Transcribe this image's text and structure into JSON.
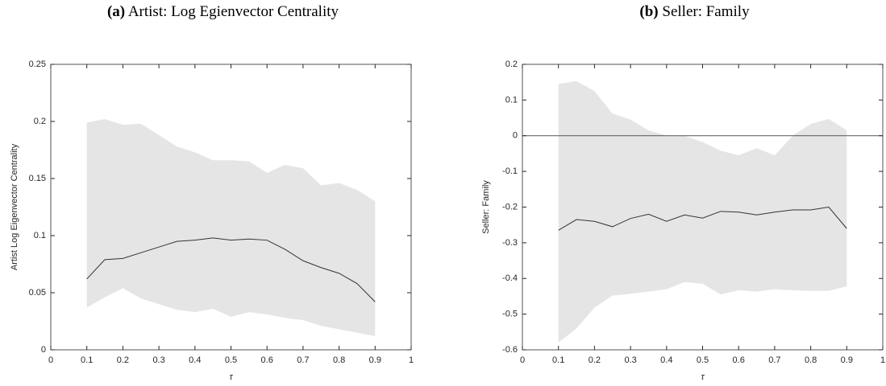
{
  "chart_data": [
    {
      "type": "line",
      "label": "(a)",
      "title": "Artist: Log Egienvector Centrality",
      "x_label": "τ",
      "y_label": "Artist Log Eigenvector Centrality",
      "x": [
        0.1,
        0.15,
        0.2,
        0.25,
        0.3,
        0.35,
        0.4,
        0.45,
        0.5,
        0.55,
        0.6,
        0.65,
        0.7,
        0.75,
        0.8,
        0.85,
        0.9
      ],
      "values": [
        0.062,
        0.079,
        0.08,
        0.085,
        0.09,
        0.095,
        0.096,
        0.098,
        0.096,
        0.097,
        0.096,
        0.088,
        0.078,
        0.072,
        0.067,
        0.058,
        0.042
      ],
      "upper": [
        0.199,
        0.202,
        0.197,
        0.198,
        0.188,
        0.178,
        0.173,
        0.166,
        0.166,
        0.165,
        0.155,
        0.162,
        0.159,
        0.144,
        0.146,
        0.14,
        0.13
      ],
      "lower": [
        0.037,
        0.046,
        0.054,
        0.045,
        0.04,
        0.035,
        0.033,
        0.036,
        0.029,
        0.033,
        0.031,
        0.028,
        0.026,
        0.021,
        0.018,
        0.015,
        0.012
      ],
      "color": "#333333",
      "band_color": "#e5e5e5",
      "xlim": [
        0,
        1
      ],
      "xticks": [
        0,
        0.1,
        0.2,
        0.3,
        0.4,
        0.5,
        0.6,
        0.7,
        0.8,
        0.9,
        1
      ],
      "ylim": [
        0,
        0.25
      ],
      "yticks": [
        0,
        0.05,
        0.1,
        0.15,
        0.2,
        0.25
      ]
    },
    {
      "type": "line",
      "label": "(b)",
      "title": "Seller: Family",
      "x_label": "τ",
      "y_label": "Seller: Family",
      "x": [
        0.1,
        0.15,
        0.2,
        0.25,
        0.3,
        0.35,
        0.4,
        0.45,
        0.5,
        0.55,
        0.6,
        0.65,
        0.7,
        0.75,
        0.8,
        0.85,
        0.9
      ],
      "values": [
        -0.265,
        -0.235,
        -0.24,
        -0.255,
        -0.232,
        -0.22,
        -0.24,
        -0.222,
        -0.231,
        -0.212,
        -0.214,
        -0.222,
        -0.214,
        -0.208,
        -0.208,
        -0.2,
        -0.26
      ],
      "upper": [
        0.145,
        0.153,
        0.125,
        0.062,
        0.045,
        0.015,
        0.0,
        0.0,
        -0.018,
        -0.042,
        -0.055,
        -0.035,
        -0.055,
        0.0,
        0.033,
        0.047,
        0.015
      ],
      "lower": [
        -0.58,
        -0.54,
        -0.482,
        -0.448,
        -0.443,
        -0.437,
        -0.43,
        -0.41,
        -0.415,
        -0.445,
        -0.433,
        -0.437,
        -0.43,
        -0.433,
        -0.435,
        -0.435,
        -0.422
      ],
      "color": "#333333",
      "band_color": "#e5e5e5",
      "reference_line": 0,
      "xlim": [
        0,
        1
      ],
      "xticks": [
        0,
        0.1,
        0.2,
        0.3,
        0.4,
        0.5,
        0.6,
        0.7,
        0.8,
        0.9,
        1
      ],
      "ylim": [
        -0.6,
        0.2
      ],
      "yticks": [
        -0.6,
        -0.5,
        -0.4,
        -0.3,
        -0.2,
        -0.1,
        0,
        0.1,
        0.2
      ]
    }
  ]
}
